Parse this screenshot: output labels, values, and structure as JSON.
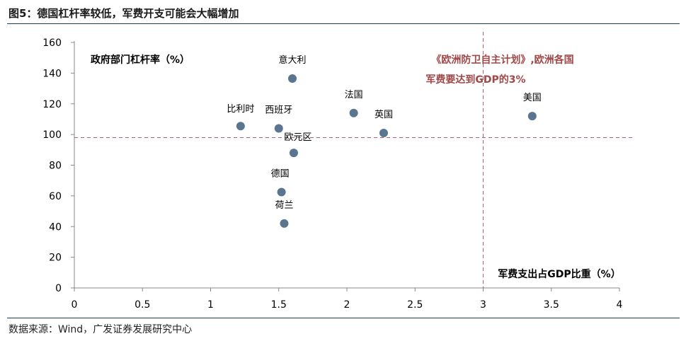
{
  "figure_title": "图5：德国杠杆率较低，军费开支可能会大幅增加",
  "source": "数据来源：Wind，广发证券发展研究中心",
  "colors": {
    "point": "#5a7590",
    "reference_line": "#b06070",
    "annotation": "#a04848",
    "axis": "#888888"
  },
  "chart_data": {
    "type": "scatter",
    "title": "",
    "xlabel": "军费支出占GDP比重（%）",
    "ylabel": "政府部门杠杆率（%）",
    "xlim": [
      0,
      4
    ],
    "ylim": [
      0,
      160
    ],
    "x_ticks": [
      "0",
      "0.5",
      "1",
      "1.5",
      "2",
      "2.5",
      "3",
      "3.5",
      "4"
    ],
    "y_ticks": [
      "0",
      "20",
      "40",
      "60",
      "80",
      "100",
      "120",
      "140",
      "160"
    ],
    "grid": false,
    "points": [
      {
        "label": "意大利",
        "x": 1.6,
        "y": 136.5
      },
      {
        "label": "比利时",
        "x": 1.22,
        "y": 105.5
      },
      {
        "label": "西班牙",
        "x": 1.5,
        "y": 104
      },
      {
        "label": "法国",
        "x": 2.05,
        "y": 114
      },
      {
        "label": "英国",
        "x": 2.27,
        "y": 101
      },
      {
        "label": "欧元区",
        "x": 1.61,
        "y": 88
      },
      {
        "label": "德国",
        "x": 1.52,
        "y": 62.5
      },
      {
        "label": "荷兰",
        "x": 1.54,
        "y": 42
      },
      {
        "label": "美国",
        "x": 3.36,
        "y": 112
      }
    ],
    "reference_lines": [
      {
        "axis": "x",
        "value": 3
      },
      {
        "axis": "y",
        "value": 98
      }
    ],
    "annotation_lines": [
      "《欧洲防卫自主计划》,欧洲各国",
      "军费要达到GDP的3%"
    ]
  }
}
